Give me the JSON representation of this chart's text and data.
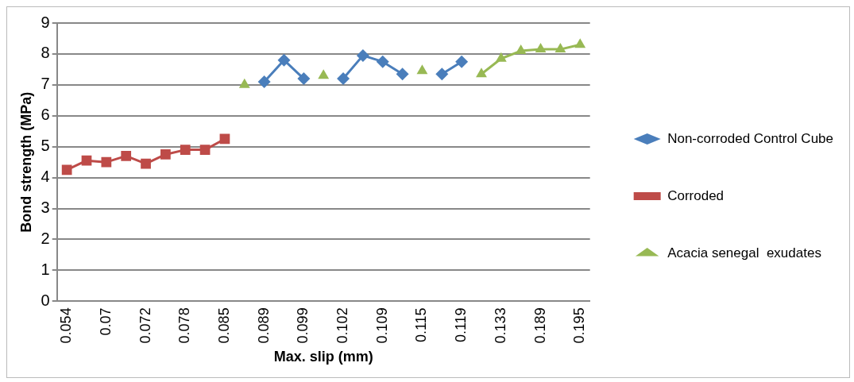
{
  "chart_data": {
    "type": "line",
    "xlabel": "Max. slip (mm)",
    "ylabel": "Bond strength (MPa)",
    "categories": [
      "0.054",
      null,
      "0.07",
      null,
      "0.072",
      null,
      "0.078",
      null,
      "0.085",
      null,
      "0.089",
      null,
      "0.099",
      null,
      "0.102",
      null,
      "0.109",
      null,
      "0.115",
      null,
      "0.119",
      null,
      "0.133",
      null,
      "0.189",
      null,
      "0.195"
    ],
    "series": [
      {
        "name": "Non-corroded Control Cube",
        "color": "#4a7ebb",
        "marker": "diamond",
        "values": [
          null,
          null,
          null,
          null,
          null,
          null,
          null,
          null,
          null,
          null,
          7.1,
          7.8,
          7.2,
          null,
          7.2,
          7.95,
          7.75,
          7.35,
          null,
          7.35,
          7.75,
          null,
          null,
          null,
          null,
          null,
          null
        ]
      },
      {
        "name": "Corroded",
        "color": "#be4b48",
        "marker": "square",
        "values": [
          4.25,
          4.55,
          4.5,
          4.7,
          4.45,
          4.75,
          4.9,
          4.9,
          5.25,
          null,
          null,
          null,
          null,
          null,
          null,
          null,
          null,
          null,
          null,
          null,
          null,
          null,
          null,
          null,
          null,
          null,
          null
        ]
      },
      {
        "name": "Acacia senegal  exudates",
        "color": "#98b954",
        "marker": "triangle",
        "values": [
          null,
          null,
          null,
          null,
          null,
          null,
          null,
          null,
          null,
          7.0,
          null,
          null,
          null,
          7.3,
          null,
          null,
          null,
          null,
          7.45,
          null,
          null,
          7.35,
          7.85,
          8.1,
          8.15,
          8.15,
          8.3
        ]
      }
    ],
    "ylim": [
      0,
      9
    ],
    "yticks": [
      0,
      1,
      2,
      3,
      4,
      5,
      6,
      7,
      8,
      9
    ],
    "grid": "y",
    "legend": "right",
    "line_style": "solid"
  }
}
